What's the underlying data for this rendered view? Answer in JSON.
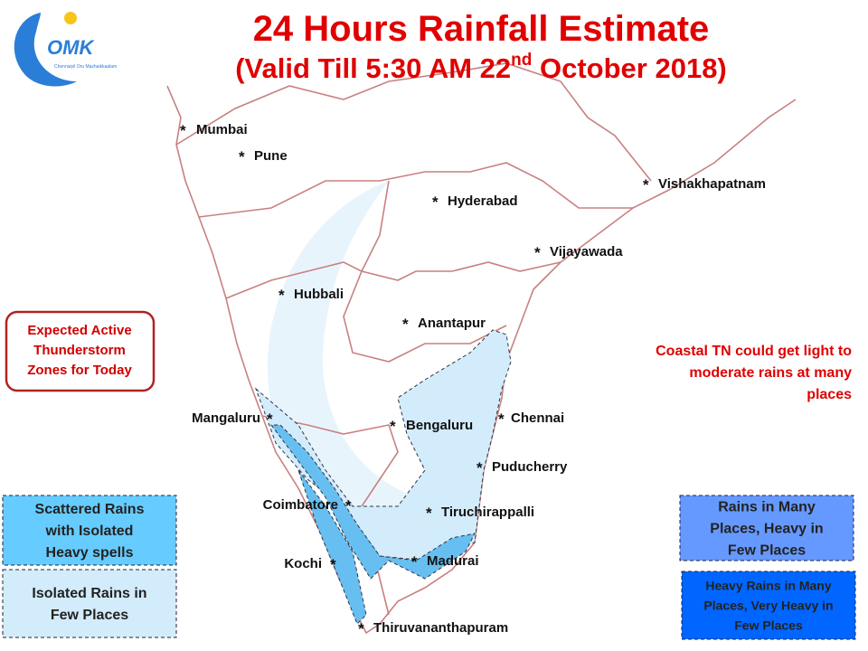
{
  "header": {
    "title": "24 Hours Rainfall Estimate",
    "subtitle": {
      "before": "(Valid Till 5:30 AM 22",
      "superscript": "nd",
      "after": " October 2018)"
    }
  },
  "logo": {
    "name": "OMK",
    "tagline": "Chennaiyil Oru Mazhaikkaalam"
  },
  "cities": {
    "marker": "*",
    "names": [
      "Mumbai",
      "Pune",
      "Hyderabad",
      "Vishakhapatnam",
      "Vijayawada",
      "Hubbali",
      "Anantapur",
      "Mangaluru",
      "Bengaluru",
      "Chennai",
      "Puducherry",
      "Coimbatore",
      "Tiruchirappalli",
      "Kochi",
      "Madurai",
      "Thiruvananthapuram"
    ]
  },
  "thunderstorm_box": {
    "lines": [
      "Expected Active",
      "Thunderstorm",
      "Zones for Today"
    ]
  },
  "note": {
    "lines": [
      "Coastal TN could get light to",
      "moderate rains at many",
      "places"
    ]
  },
  "legend": [
    {
      "lines": [
        "Scattered Rains",
        "with Isolated",
        "Heavy spells"
      ],
      "color": "#66ccff"
    },
    {
      "lines": [
        "Isolated Rains in",
        "Few  Places"
      ],
      "color": "#d3ecfb"
    },
    {
      "lines": [
        "Rains in Many",
        "Places, Heavy in",
        "Few Places"
      ],
      "color": "#6699ff"
    },
    {
      "lines": [
        "Heavy Rains in Many",
        "Places, Very Heavy in",
        "Few Places"
      ],
      "color": "#0066ff"
    }
  ]
}
